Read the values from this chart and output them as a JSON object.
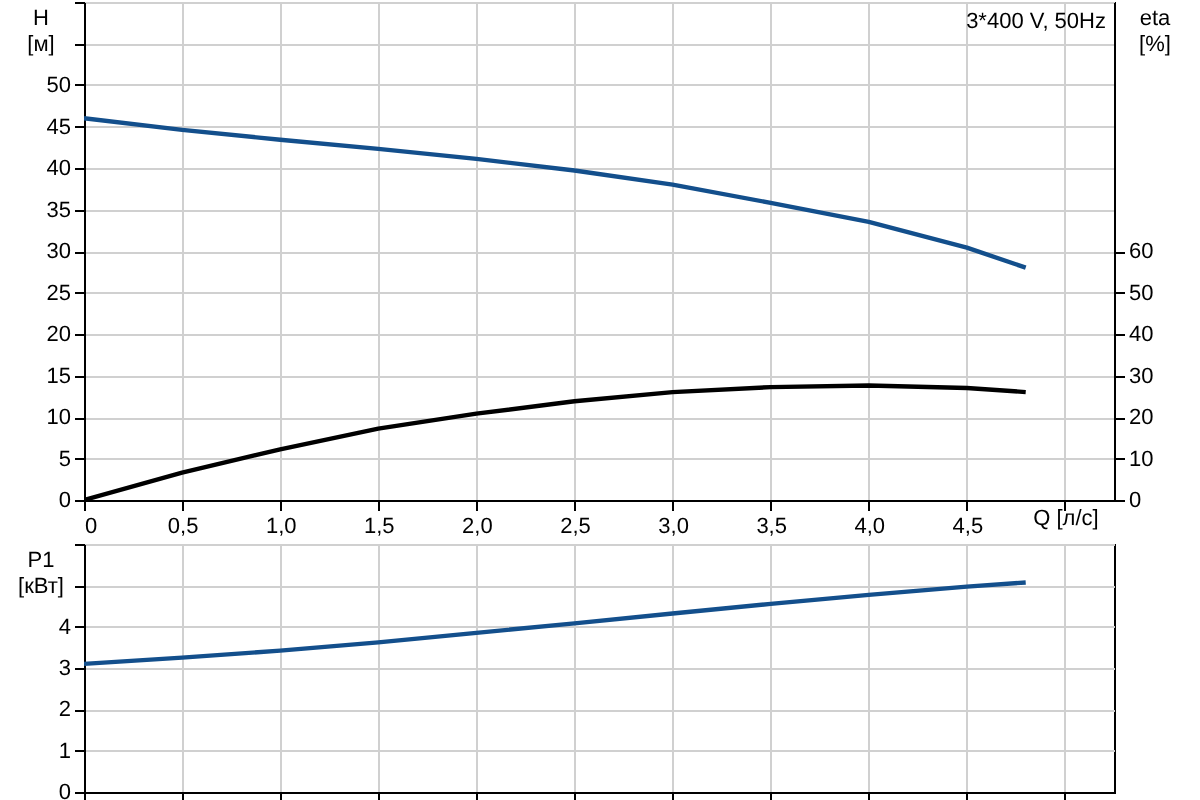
{
  "chart_data": [
    {
      "type": "line",
      "xlabel": "Q [л/с]",
      "ylabel": "H [м]",
      "y2label": "eta [%]",
      "annotations": [
        "3*400 V, 50Hz"
      ],
      "x": [
        0,
        0.5,
        1,
        1.5,
        2,
        2.5,
        3,
        3.5,
        4,
        4.5,
        4.8
      ],
      "series": [
        {
          "color": "#134f8c",
          "values": [
            46,
            44.6,
            43.4,
            42.3,
            41.1,
            39.7,
            38,
            35.8,
            33.5,
            30.4,
            28
          ]
        },
        {
          "color": "#000000",
          "axis": "y2",
          "values": [
            0,
            6.6,
            12.2,
            17.2,
            20.8,
            23.8,
            26,
            27.2,
            27.6,
            27,
            26
          ]
        }
      ],
      "xlim": [
        0,
        5.25
      ],
      "xticks": [
        0,
        {
          "value": 0.5,
          "label": "0,5"
        },
        {
          "value": 1,
          "label": "1,0"
        },
        {
          "value": 1.5,
          "label": "1,5"
        },
        {
          "value": 2,
          "label": "2,0"
        },
        {
          "value": 2.5,
          "label": "2,5"
        },
        {
          "value": 3,
          "label": "3,0"
        },
        {
          "value": 3.5,
          "label": "3,5"
        },
        {
          "value": 4,
          "label": "4,0"
        },
        {
          "value": 4.5,
          "label": "4,5"
        },
        {
          "value": 5,
          "label": null
        }
      ],
      "ylim": [
        0,
        60
      ],
      "yticks": [
        0,
        5,
        10,
        15,
        20,
        25,
        30,
        35,
        40,
        45,
        50,
        {
          "value": 55,
          "label": null
        },
        {
          "value": 60,
          "label": null
        }
      ],
      "y2lim": [
        0,
        120
      ],
      "y2ticks": [
        0,
        10,
        20,
        30,
        40,
        50,
        60
      ],
      "grid": true,
      "marker": "none",
      "line_style": "solid"
    },
    {
      "type": "line",
      "ylabel": "P1 [кВт]",
      "tick_labels": "y",
      "x": [
        0,
        0.5,
        1,
        1.5,
        2,
        2.5,
        3,
        3.5,
        4,
        4.5,
        4.8
      ],
      "series": [
        {
          "color": "#134f8c",
          "values": [
            3.1,
            3.25,
            3.42,
            3.62,
            3.85,
            4.08,
            4.32,
            4.55,
            4.77,
            4.97,
            5.07
          ]
        }
      ],
      "xlim": [
        0,
        5.25
      ],
      "xticks": [
        0,
        0.5,
        1,
        1.5,
        2,
        2.5,
        3,
        3.5,
        4,
        4.5,
        5
      ],
      "ylim": [
        0,
        6
      ],
      "yticks": [
        0,
        1,
        2,
        3,
        4,
        {
          "value": 5,
          "label": null
        },
        {
          "value": 6,
          "label": null
        }
      ],
      "grid": true,
      "marker": "none",
      "line_style": "solid"
    }
  ]
}
